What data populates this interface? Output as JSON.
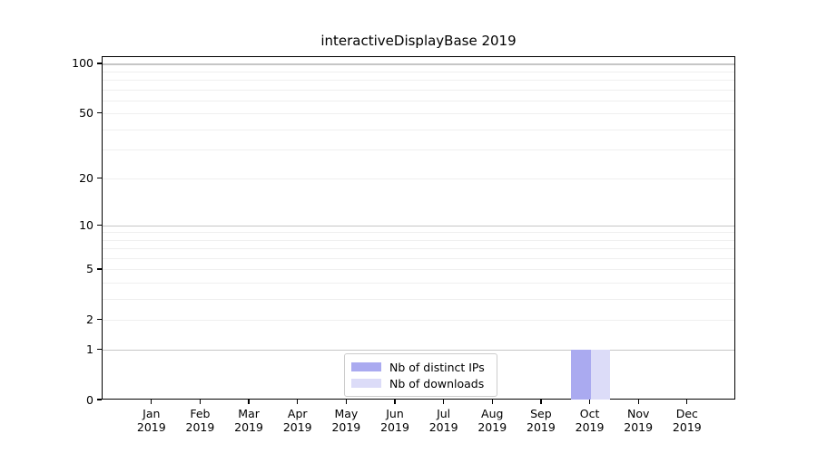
{
  "chart_data": {
    "type": "bar",
    "title": "interactiveDisplayBase 2019",
    "xlabel": "",
    "ylabel": "",
    "scale": "log1p",
    "ylim": [
      0,
      110
    ],
    "grid": "on",
    "categories": [
      "Jan",
      "Feb",
      "Mar",
      "Apr",
      "May",
      "Jun",
      "Jul",
      "Aug",
      "Sep",
      "Oct",
      "Nov",
      "Dec"
    ],
    "category_year": "2019",
    "series": [
      {
        "name": "Nb of distinct IPs",
        "color": "#aaaaf0",
        "values": [
          0,
          0,
          0,
          0,
          0,
          0,
          0,
          0,
          0,
          1,
          0,
          0
        ]
      },
      {
        "name": "Nb of downloads",
        "color": "#dcdcf8",
        "values": [
          0,
          0,
          0,
          0,
          0,
          0,
          0,
          0,
          0,
          1,
          0,
          0
        ]
      }
    ],
    "y_ticks": [
      0,
      1,
      2,
      5,
      10,
      20,
      50,
      100
    ],
    "y_grid_major": [
      1,
      10,
      100
    ],
    "y_grid_minor": [
      2,
      3,
      4,
      5,
      6,
      7,
      8,
      9,
      20,
      30,
      40,
      50,
      60,
      70,
      80,
      90
    ],
    "colors": {
      "grid_major": "#c6c6c6",
      "grid_minor": "#efefef",
      "spine": "#000000",
      "text": "#000000",
      "legend_border": "#cccccc"
    },
    "legend": {
      "position": "lower center",
      "items": [
        "Nb of distinct IPs",
        "Nb of downloads"
      ]
    }
  }
}
